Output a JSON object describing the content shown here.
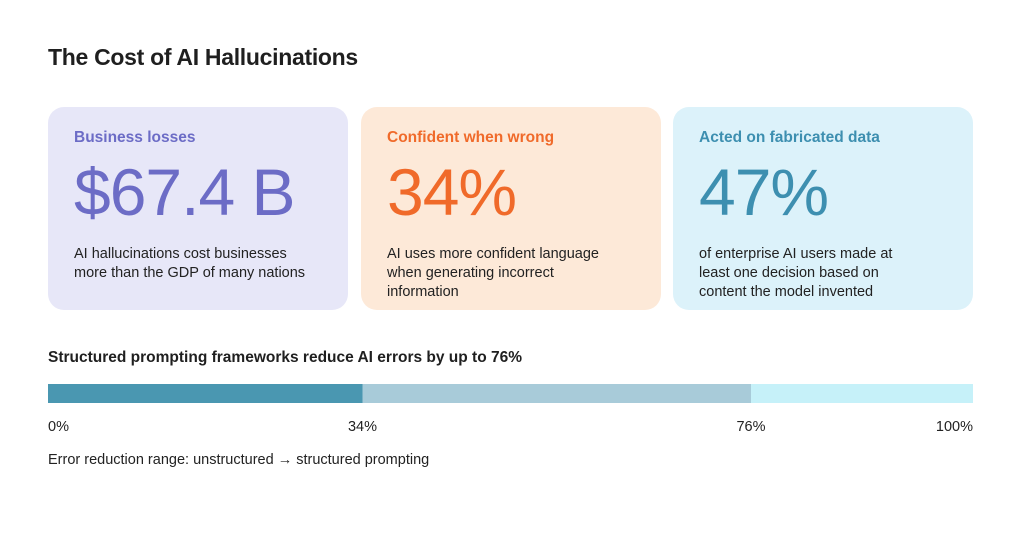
{
  "title": "The Cost of AI Hallucinations",
  "cards": [
    {
      "label": "Business losses",
      "value": "$67.4 B",
      "description": "AI hallucinations cost businesses more than the GDP of many nations"
    },
    {
      "label": "Confident when wrong",
      "value": "34%",
      "description": "AI uses more confident language when generating incorrect information"
    },
    {
      "label": "Acted on fabricated data",
      "value": "47%",
      "description": "of enterprise AI users made at least one decision based on content the model invented"
    }
  ],
  "chart_data": {
    "type": "stacked_bar",
    "title": "Structured prompting frameworks reduce AI errors by up to 76%",
    "values": [
      34,
      42,
      24
    ],
    "colors": [
      "#4a97b1",
      "#a8cbd9",
      "#c6f1f9"
    ],
    "xlim": [
      0,
      100
    ],
    "xticks": [
      {
        "value": 0,
        "label": "0%"
      },
      {
        "value": 34,
        "label": "34%"
      },
      {
        "value": 76,
        "label": "76%"
      },
      {
        "value": 100,
        "label": "100%"
      }
    ],
    "caption": "Error reduction range: unstructured → structured prompting"
  }
}
